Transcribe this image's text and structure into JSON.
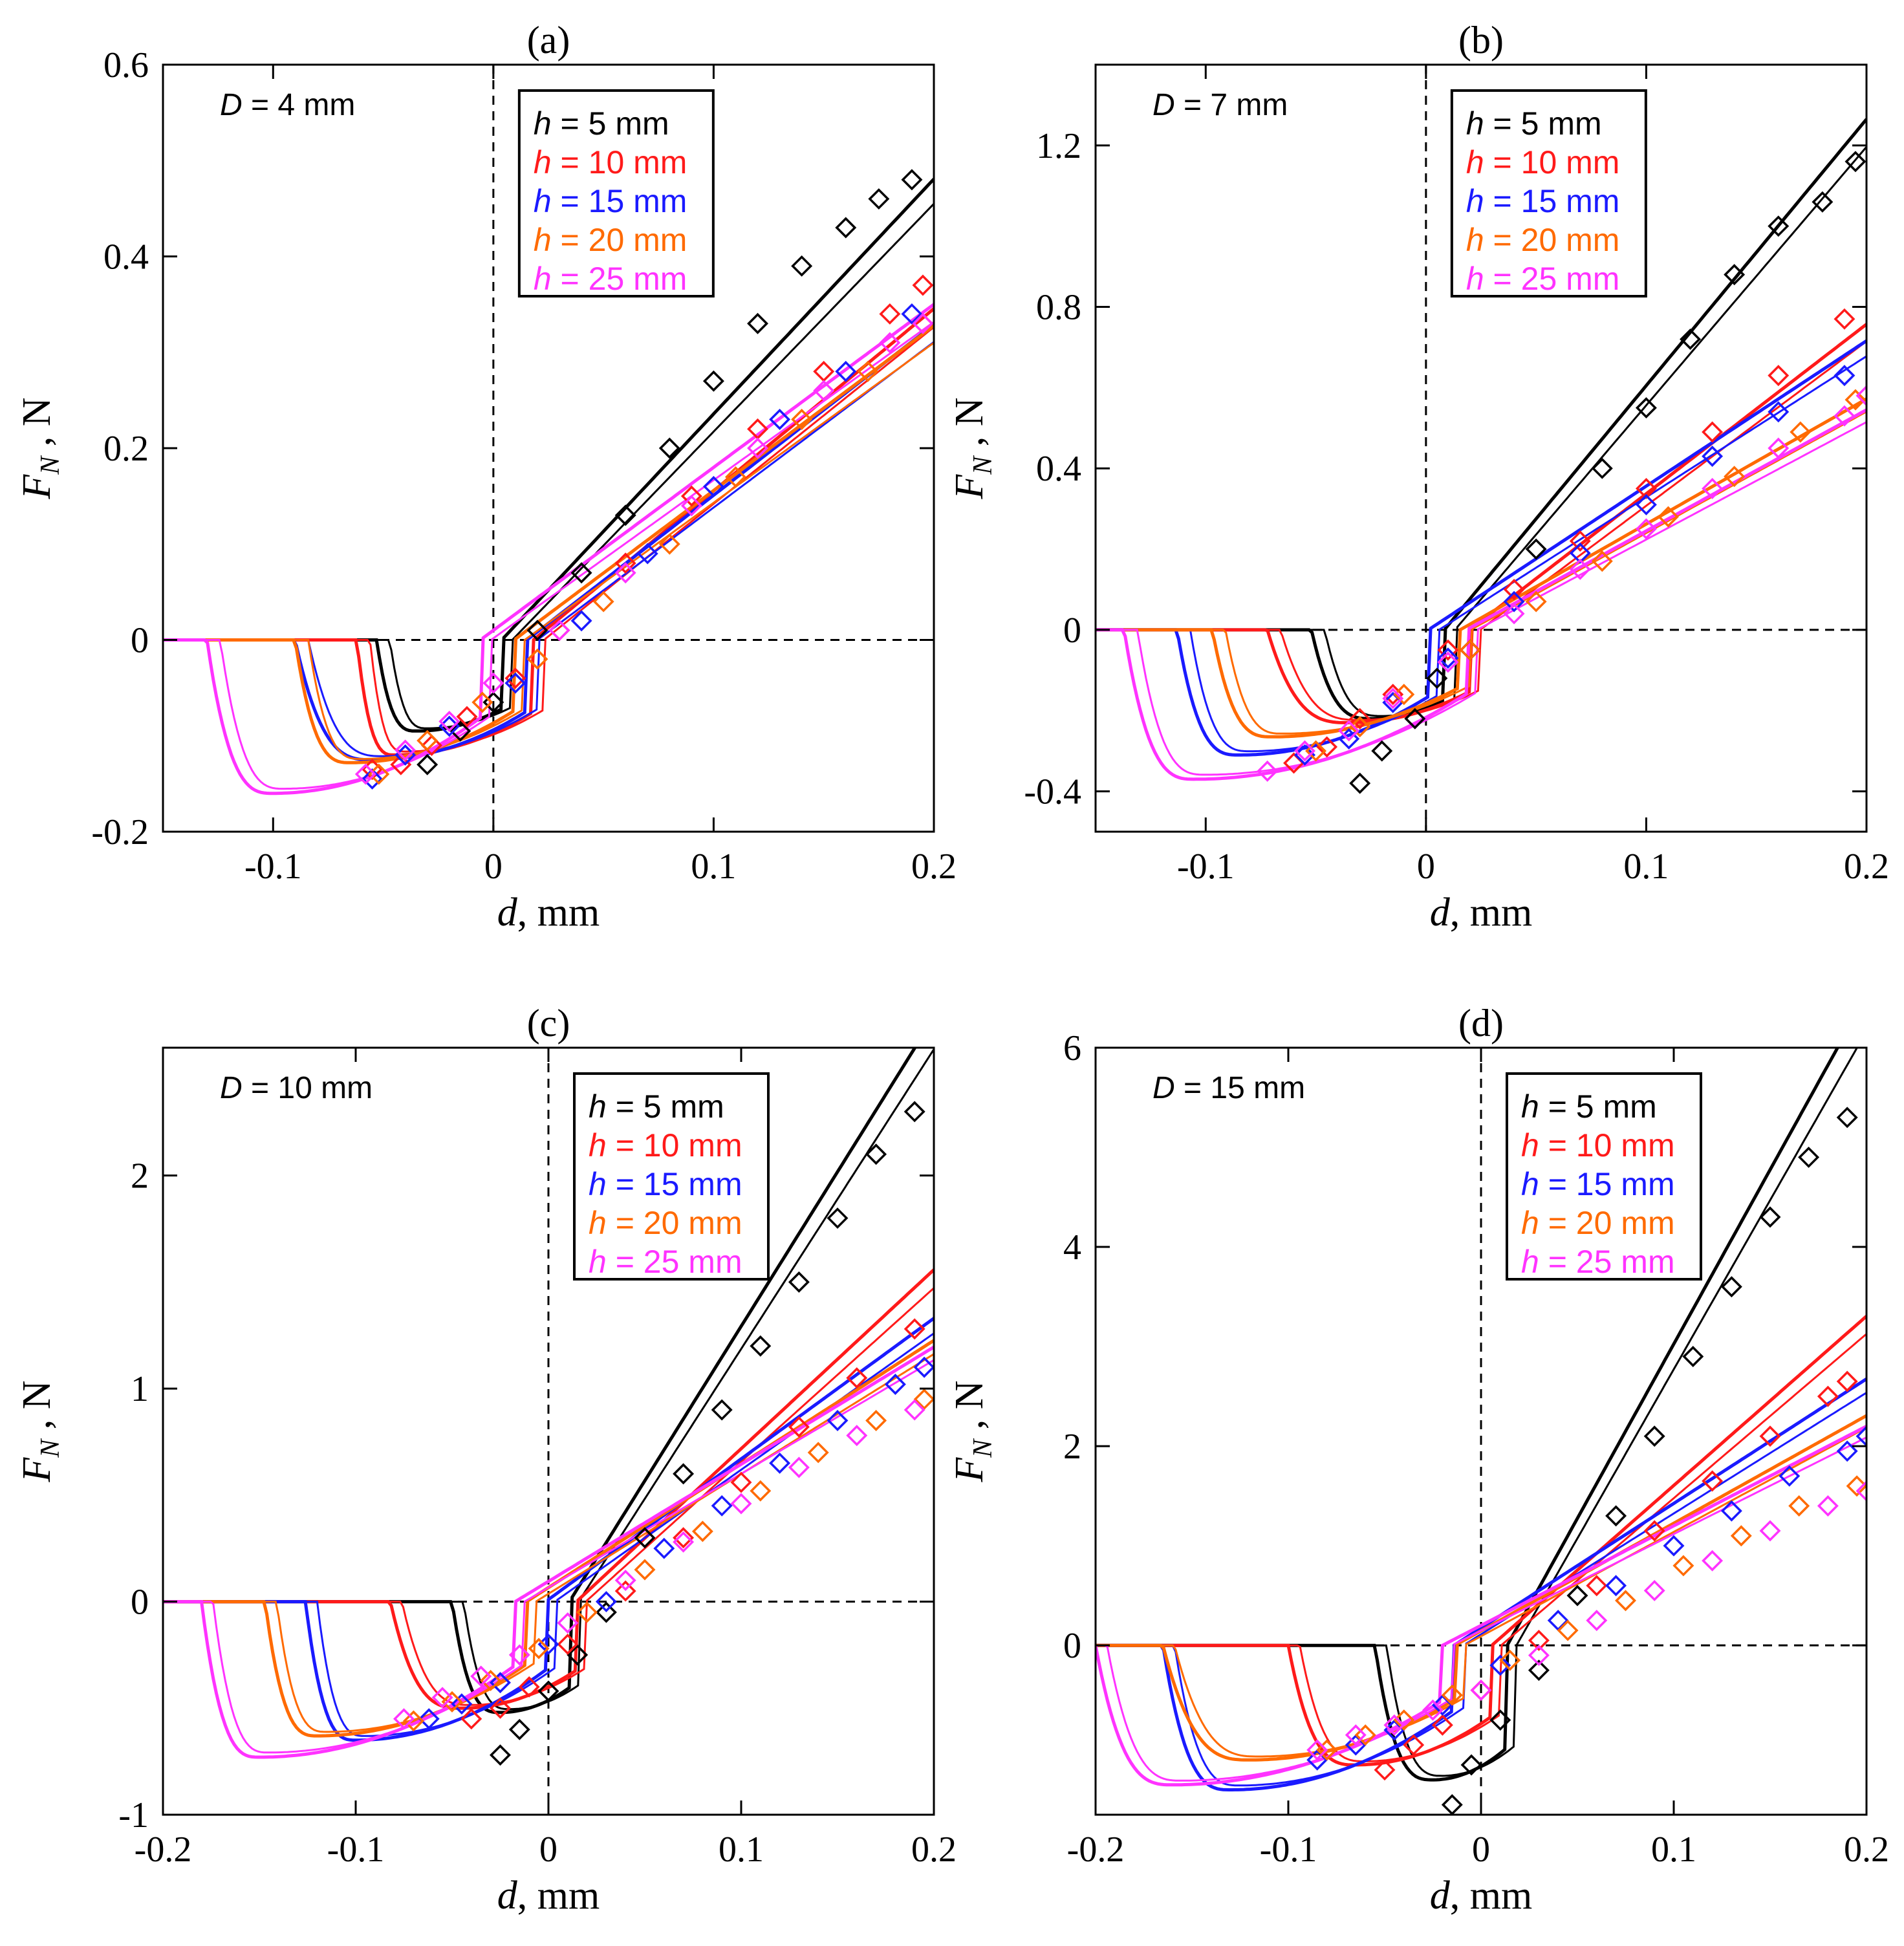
{
  "figure": {
    "series_colors": {
      "h = 5 mm": "#000000",
      "h = 10 mm": "#ff1a1a",
      "h = 15 mm": "#1a1aff",
      "h = 20 mm": "#ff6a00",
      "h = 25 mm": "#ff33ff"
    }
  },
  "chart_data": [
    {
      "type": "line",
      "panel_label": "(a)",
      "annotation": "D = 4 mm",
      "xlabel": "d, mm",
      "ylabel": "F_N , N",
      "xlim": [
        -0.15,
        0.2
      ],
      "ylim": [
        -0.2,
        0.6
      ],
      "xticks": [
        -0.1,
        0,
        0.1,
        0.2
      ],
      "xtick_labels": [
        "-0.1",
        "0",
        "0.1",
        "0.2"
      ],
      "yticks": [
        -0.2,
        0,
        0.2,
        0.4,
        0.6
      ],
      "ytick_labels": [
        "-0.2",
        "0",
        "0.2",
        "0.4",
        "0.6"
      ],
      "legend": [
        "h = 5 mm",
        "h = 10 mm",
        "h = 15 mm",
        "h = 20 mm",
        "h = 25 mm"
      ],
      "series": [
        {
          "name": "h = 5 mm",
          "color": "#000000",
          "detach": -0.053,
          "min": -0.095,
          "d_min": -0.035,
          "slope": 2.45,
          "markers": {
            "x": [
              -0.03,
              -0.015,
              0,
              0.02,
              0.04,
              0.06,
              0.08,
              0.1,
              0.12,
              0.14,
              0.16,
              0.175,
              0.19
            ],
            "y": [
              -0.13,
              -0.095,
              -0.065,
              0.01,
              0.07,
              0.13,
              0.2,
              0.27,
              0.33,
              0.39,
              0.43,
              0.46,
              0.48
            ]
          }
        },
        {
          "name": "h = 10 mm",
          "color": "#ff1a1a",
          "detach": -0.062,
          "min": -0.12,
          "d_min": -0.045,
          "slope": 1.9,
          "markers": {
            "x": [
              -0.055,
              -0.042,
              -0.028,
              -0.012,
              0.01,
              0.03,
              0.06,
              0.09,
              0.12,
              0.15,
              0.18,
              0.195
            ],
            "y": [
              -0.135,
              -0.13,
              -0.11,
              -0.08,
              -0.04,
              0.01,
              0.08,
              0.15,
              0.22,
              0.28,
              0.34,
              0.37
            ]
          }
        },
        {
          "name": "h = 15 mm",
          "color": "#1a1aff",
          "detach": -0.09,
          "min": -0.125,
          "d_min": -0.055,
          "slope": 1.78,
          "markers": {
            "x": [
              -0.055,
              -0.04,
              -0.02,
              0.01,
              0.04,
              0.07,
              0.1,
              0.13,
              0.16,
              0.19
            ],
            "y": [
              -0.145,
              -0.12,
              -0.09,
              -0.045,
              0.02,
              0.09,
              0.16,
              0.23,
              0.28,
              0.34
            ]
          }
        },
        {
          "name": "h = 20 mm",
          "color": "#ff6a00",
          "detach": -0.09,
          "min": -0.128,
          "d_min": -0.065,
          "slope": 1.72,
          "markers": {
            "x": [
              -0.052,
              -0.03,
              -0.005,
              0.02,
              0.05,
              0.08,
              0.11,
              0.14,
              0.17,
              0.195
            ],
            "y": [
              -0.14,
              -0.105,
              -0.065,
              -0.02,
              0.04,
              0.1,
              0.17,
              0.23,
              0.28,
              0.33
            ]
          }
        },
        {
          "name": "h = 25 mm",
          "color": "#ff33ff",
          "detach": -0.13,
          "min": -0.16,
          "d_min": -0.1,
          "slope": 1.7,
          "markers": {
            "x": [
              -0.058,
              -0.04,
              -0.02,
              0,
              0.03,
              0.06,
              0.09,
              0.12,
              0.15,
              0.18,
              0.195
            ],
            "y": [
              -0.14,
              -0.115,
              -0.085,
              -0.045,
              0.01,
              0.07,
              0.14,
              0.2,
              0.26,
              0.31,
              0.33
            ]
          }
        }
      ]
    },
    {
      "type": "line",
      "panel_label": "(b)",
      "annotation": "D = 7 mm",
      "xlabel": "d, mm",
      "ylabel": "F_N , N",
      "xlim": [
        -0.15,
        0.2
      ],
      "ylim": [
        -0.5,
        1.4
      ],
      "xticks": [
        -0.1,
        0,
        0.1,
        0.2
      ],
      "xtick_labels": [
        "-0.1",
        "0",
        "0.1",
        "0.2"
      ],
      "yticks": [
        -0.4,
        0,
        0.4,
        0.8,
        1.2
      ],
      "ytick_labels": [
        "-0.4",
        "0",
        "0.4",
        "0.8",
        "1.2"
      ],
      "legend": [
        "h = 5 mm",
        "h = 10 mm",
        "h = 15 mm",
        "h = 20 mm",
        "h = 25 mm"
      ],
      "series": [
        {
          "name": "h = 5 mm",
          "color": "#000000",
          "detach": -0.052,
          "min": -0.22,
          "d_min": -0.025,
          "slope": 6.6,
          "markers": {
            "x": [
              -0.03,
              -0.02,
              -0.005,
              0.005,
              0.02,
              0.05,
              0.08,
              0.1,
              0.12,
              0.14,
              0.16,
              0.18,
              0.195
            ],
            "y": [
              -0.38,
              -0.3,
              -0.22,
              -0.12,
              -0.05,
              0.2,
              0.4,
              0.55,
              0.72,
              0.88,
              1.0,
              1.06,
              1.16
            ]
          }
        },
        {
          "name": "h = 10 mm",
          "color": "#ff1a1a",
          "detach": -0.072,
          "min": -0.23,
          "d_min": -0.035,
          "slope": 4.2,
          "markers": {
            "x": [
              -0.06,
              -0.045,
              -0.03,
              -0.015,
              0.01,
              0.04,
              0.07,
              0.1,
              0.13,
              0.16,
              0.19
            ],
            "y": [
              -0.33,
              -0.29,
              -0.22,
              -0.16,
              -0.05,
              0.1,
              0.22,
              0.35,
              0.49,
              0.63,
              0.77
            ]
          }
        },
        {
          "name": "h = 15 mm",
          "color": "#1a1aff",
          "detach": -0.113,
          "min": -0.31,
          "d_min": -0.085,
          "slope": 3.6,
          "markers": {
            "x": [
              -0.055,
              -0.035,
              -0.015,
              0.01,
              0.04,
              0.07,
              0.1,
              0.13,
              0.16,
              0.19
            ],
            "y": [
              -0.31,
              -0.27,
              -0.18,
              -0.07,
              0.07,
              0.19,
              0.31,
              0.43,
              0.54,
              0.63
            ]
          }
        },
        {
          "name": "h = 20 mm",
          "color": "#ff6a00",
          "detach": -0.097,
          "min": -0.265,
          "d_min": -0.07,
          "slope": 3.1,
          "markers": {
            "x": [
              -0.05,
              -0.03,
              -0.01,
              0.02,
              0.05,
              0.08,
              0.11,
              0.14,
              0.17,
              0.195
            ],
            "y": [
              -0.3,
              -0.24,
              -0.16,
              -0.05,
              0.07,
              0.17,
              0.28,
              0.38,
              0.49,
              0.57
            ]
          }
        },
        {
          "name": "h = 25 mm",
          "color": "#ff33ff",
          "detach": -0.137,
          "min": -0.37,
          "d_min": -0.105,
          "slope": 3.0,
          "markers": {
            "x": [
              -0.072,
              -0.055,
              -0.035,
              -0.015,
              0.01,
              0.04,
              0.07,
              0.1,
              0.13,
              0.16,
              0.19,
              0.2
            ],
            "y": [
              -0.35,
              -0.3,
              -0.25,
              -0.17,
              -0.08,
              0.04,
              0.15,
              0.25,
              0.35,
              0.45,
              0.53,
              0.58
            ]
          }
        }
      ]
    },
    {
      "type": "line",
      "panel_label": "(c)",
      "annotation": "D = 10 mm",
      "xlabel": "d, mm",
      "ylabel": "F_N , N",
      "xlim": [
        -0.2,
        0.2
      ],
      "ylim": [
        -1,
        2.6
      ],
      "xticks": [
        -0.2,
        -0.1,
        0,
        0.1,
        0.2
      ],
      "xtick_labels": [
        "-0.2",
        "-0.1",
        "0",
        "0.1",
        "0.2"
      ],
      "yticks": [
        -1,
        0,
        1,
        2
      ],
      "ytick_labels": [
        "-1",
        "0",
        "1",
        "2"
      ],
      "legend": [
        "h = 5 mm",
        "h = 10 mm",
        "h = 15 mm",
        "h = 20 mm",
        "h = 25 mm"
      ],
      "series": [
        {
          "name": "h = 5 mm",
          "color": "#000000",
          "detach": -0.05,
          "min": -0.52,
          "d_min": -0.025,
          "slope": 14.5,
          "markers": {
            "x": [
              -0.025,
              -0.015,
              0,
              0.015,
              0.03,
              0.05,
              0.07,
              0.09,
              0.11,
              0.13,
              0.15,
              0.17,
              0.19
            ],
            "y": [
              -0.72,
              -0.6,
              -0.42,
              -0.25,
              -0.05,
              0.3,
              0.6,
              0.9,
              1.2,
              1.5,
              1.8,
              2.1,
              2.3
            ]
          }
        },
        {
          "name": "h = 10 mm",
          "color": "#ff1a1a",
          "detach": -0.082,
          "min": -0.5,
          "d_min": -0.045,
          "slope": 8.4,
          "markers": {
            "x": [
              -0.04,
              -0.025,
              -0.01,
              0.01,
              0.04,
              0.07,
              0.1,
              0.13,
              0.16,
              0.19
            ],
            "y": [
              -0.55,
              -0.5,
              -0.4,
              -0.2,
              0.05,
              0.3,
              0.56,
              0.82,
              1.05,
              1.28
            ]
          }
        },
        {
          "name": "h = 15 mm",
          "color": "#1a1aff",
          "detach": -0.126,
          "min": -0.65,
          "d_min": -0.1,
          "slope": 6.6,
          "markers": {
            "x": [
              -0.062,
              -0.045,
              -0.025,
              0,
              0.03,
              0.06,
              0.09,
              0.12,
              0.15,
              0.18,
              0.195
            ],
            "y": [
              -0.55,
              -0.48,
              -0.38,
              -0.2,
              0.0,
              0.25,
              0.45,
              0.65,
              0.85,
              1.02,
              1.1
            ]
          }
        },
        {
          "name": "h = 20 mm",
          "color": "#ff6a00",
          "detach": -0.147,
          "min": -0.63,
          "d_min": -0.12,
          "slope": 5.8,
          "markers": {
            "x": [
              -0.07,
              -0.05,
              -0.03,
              -0.005,
              0.02,
              0.05,
              0.08,
              0.11,
              0.14,
              0.17,
              0.195
            ],
            "y": [
              -0.56,
              -0.47,
              -0.37,
              -0.22,
              -0.05,
              0.15,
              0.33,
              0.52,
              0.7,
              0.85,
              0.95
            ]
          }
        },
        {
          "name": "h = 25 mm",
          "color": "#ff33ff",
          "detach": -0.18,
          "min": -0.73,
          "d_min": -0.15,
          "slope": 5.5,
          "markers": {
            "x": [
              -0.075,
              -0.055,
              -0.035,
              -0.015,
              0.01,
              0.04,
              0.07,
              0.1,
              0.13,
              0.16,
              0.19
            ],
            "y": [
              -0.55,
              -0.45,
              -0.35,
              -0.25,
              -0.1,
              0.1,
              0.28,
              0.46,
              0.63,
              0.78,
              0.9
            ]
          }
        }
      ]
    },
    {
      "type": "line",
      "panel_label": "(d)",
      "annotation": "D = 15 mm",
      "xlabel": "d, mm",
      "ylabel": "F_N , N",
      "xlim": [
        -0.2,
        0.2
      ],
      "ylim": [
        -1.7,
        6
      ],
      "xticks": [
        -0.2,
        -0.1,
        0,
        0.1,
        0.2
      ],
      "xtick_labels": [
        "-0.2",
        "-0.1",
        "0",
        "0.1",
        "0.2"
      ],
      "yticks": [
        0,
        2,
        4,
        6
      ],
      "ytick_labels": [
        "0",
        "2",
        "4",
        "6"
      ],
      "legend": [
        "h = 5 mm",
        "h = 10 mm",
        "h = 15 mm",
        "h = 20 mm",
        "h = 25 mm"
      ],
      "series": [
        {
          "name": "h = 5 mm",
          "color": "#000000",
          "detach": -0.055,
          "min": -1.35,
          "d_min": -0.025,
          "slope": 35,
          "markers": {
            "x": [
              -0.015,
              -0.005,
              0.01,
              0.03,
              0.05,
              0.07,
              0.09,
              0.11,
              0.13,
              0.15,
              0.17,
              0.19
            ],
            "y": [
              -1.6,
              -1.2,
              -0.75,
              -0.25,
              0.5,
              1.3,
              2.1,
              2.9,
              3.6,
              4.3,
              4.9,
              5.3
            ]
          }
        },
        {
          "name": "h = 10 mm",
          "color": "#ff1a1a",
          "detach": -0.1,
          "min": -1.2,
          "d_min": -0.065,
          "slope": 17,
          "markers": {
            "x": [
              -0.05,
              -0.035,
              -0.02,
              0,
              0.03,
              0.06,
              0.09,
              0.12,
              0.15,
              0.18,
              0.19
            ],
            "y": [
              -1.25,
              -1.0,
              -0.8,
              -0.45,
              0.05,
              0.6,
              1.15,
              1.65,
              2.1,
              2.5,
              2.65
            ]
          }
        },
        {
          "name": "h = 15 mm",
          "color": "#1a1aff",
          "detach": -0.165,
          "min": -1.45,
          "d_min": -0.13,
          "slope": 12.5,
          "markers": {
            "x": [
              -0.085,
              -0.065,
              -0.045,
              -0.02,
              0.01,
              0.04,
              0.07,
              0.1,
              0.13,
              0.16,
              0.19,
              0.2
            ],
            "y": [
              -1.15,
              -1.0,
              -0.85,
              -0.6,
              -0.2,
              0.25,
              0.6,
              1.0,
              1.35,
              1.7,
              1.95,
              2.1
            ]
          }
        },
        {
          "name": "h = 20 mm",
          "color": "#ff6a00",
          "detach": -0.165,
          "min": -1.15,
          "d_min": -0.12,
          "slope": 10.8,
          "markers": {
            "x": [
              -0.08,
              -0.06,
              -0.04,
              -0.015,
              0.015,
              0.045,
              0.075,
              0.105,
              0.135,
              0.165,
              0.195
            ],
            "y": [
              -1.05,
              -0.9,
              -0.75,
              -0.5,
              -0.15,
              0.15,
              0.45,
              0.8,
              1.1,
              1.4,
              1.6
            ]
          }
        },
        {
          "name": "h = 25 mm",
          "color": "#ff33ff",
          "detach": -0.2,
          "min": -1.4,
          "d_min": -0.16,
          "slope": 10,
          "markers": {
            "x": [
              -0.085,
              -0.065,
              -0.045,
              -0.025,
              0,
              0.03,
              0.06,
              0.09,
              0.12,
              0.15,
              0.18,
              0.2
            ],
            "y": [
              -1.05,
              -0.9,
              -0.8,
              -0.65,
              -0.45,
              -0.1,
              0.25,
              0.55,
              0.85,
              1.15,
              1.4,
              1.55
            ]
          }
        }
      ]
    }
  ]
}
